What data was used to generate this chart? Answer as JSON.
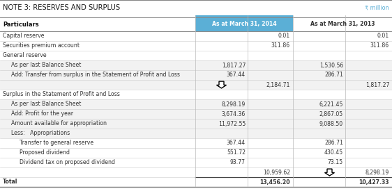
{
  "title": "NOTE 3: RESERVES AND SURPLUS",
  "currency_note": "₹ million",
  "header_col1": "Particulars",
  "header_col2": "As at March 31, 2014",
  "header_col3": "As at March 31, 2013",
  "rows": [
    {
      "label": "Capital reserve",
      "indent": 0,
      "v1a": "",
      "v1b": "0.01",
      "v2a": "",
      "v2b": "0.01",
      "bold": false,
      "bg": "white"
    },
    {
      "label": "Securities premium account",
      "indent": 0,
      "v1a": "",
      "v1b": "311.86",
      "v2a": "",
      "v2b": "311.86",
      "bold": false,
      "bg": "white"
    },
    {
      "label": "General reserve",
      "indent": 0,
      "v1a": "",
      "v1b": "",
      "v2a": "",
      "v2b": "",
      "bold": false,
      "bg": "white"
    },
    {
      "label": "As per last Balance Sheet",
      "indent": 1,
      "v1a": "1,817.27",
      "v1b": "",
      "v2a": "1,530.56",
      "v2b": "",
      "bold": false,
      "bg": "gray"
    },
    {
      "label": "Add: Transfer from surplus in the Statement of Profit and Loss",
      "indent": 1,
      "v1a": "367.44",
      "v1b": "",
      "v2a": "286.71",
      "v2b": "",
      "bold": false,
      "bg": "gray"
    },
    {
      "label": "",
      "indent": 0,
      "v1a": "",
      "v1b": "2,184.71",
      "v2a": "",
      "v2b": "1,817.27",
      "bold": false,
      "bg": "gray",
      "arrow2014": true,
      "arrow2013": false
    },
    {
      "label": "Surplus in the Statement of Profit and Loss",
      "indent": 0,
      "v1a": "",
      "v1b": "",
      "v2a": "",
      "v2b": "",
      "bold": false,
      "bg": "white"
    },
    {
      "label": "As per last Balance Sheet",
      "indent": 1,
      "v1a": "8,298.19",
      "v1b": "",
      "v2a": "6,221.45",
      "v2b": "",
      "bold": false,
      "bg": "gray"
    },
    {
      "label": "Add: Profit for the year",
      "indent": 1,
      "v1a": "3,674.36",
      "v1b": "",
      "v2a": "2,867.05",
      "v2b": "",
      "bold": false,
      "bg": "gray"
    },
    {
      "label": "Amount available for appropriation",
      "indent": 1,
      "v1a": "11,972.55",
      "v1b": "",
      "v2a": "9,088.50",
      "v2b": "",
      "bold": false,
      "bg": "gray"
    },
    {
      "label": "Less:   Appropriations",
      "indent": 1,
      "v1a": "",
      "v1b": "",
      "v2a": "",
      "v2b": "",
      "bold": false,
      "bg": "gray"
    },
    {
      "label": "Transfer to general reserve",
      "indent": 2,
      "v1a": "367.44",
      "v1b": "",
      "v2a": "286.71",
      "v2b": "",
      "bold": false,
      "bg": "white"
    },
    {
      "label": "Proposed dividend",
      "indent": 2,
      "v1a": "551.72",
      "v1b": "",
      "v2a": "430.45",
      "v2b": "",
      "bold": false,
      "bg": "white"
    },
    {
      "label": "Dividend tax on proposed dividend",
      "indent": 2,
      "v1a": "93.77",
      "v1b": "",
      "v2a": "73.15",
      "v2b": "",
      "bold": false,
      "bg": "white"
    },
    {
      "label": "",
      "indent": 0,
      "v1a": "",
      "v1b": "10,959.62",
      "v2a": "",
      "v2b": "8,298.19",
      "bold": false,
      "bg": "white",
      "arrow2014": false,
      "arrow2013": true
    },
    {
      "label": "Total",
      "indent": 0,
      "v1a": "",
      "v1b": "13,456.20",
      "v2a": "",
      "v2b": "10,427.33",
      "bold": true,
      "bg": "white"
    }
  ],
  "header_bg": "#5bafd6",
  "gray_bg": "#f2f2f2",
  "currency_color": "#5bafd6",
  "title_color": "#1a1a1a",
  "text_color": "#333333",
  "border_color": "#bbbbbb",
  "header_text_color_2014": "#ffffff",
  "header_text_color_2013": "#333333"
}
